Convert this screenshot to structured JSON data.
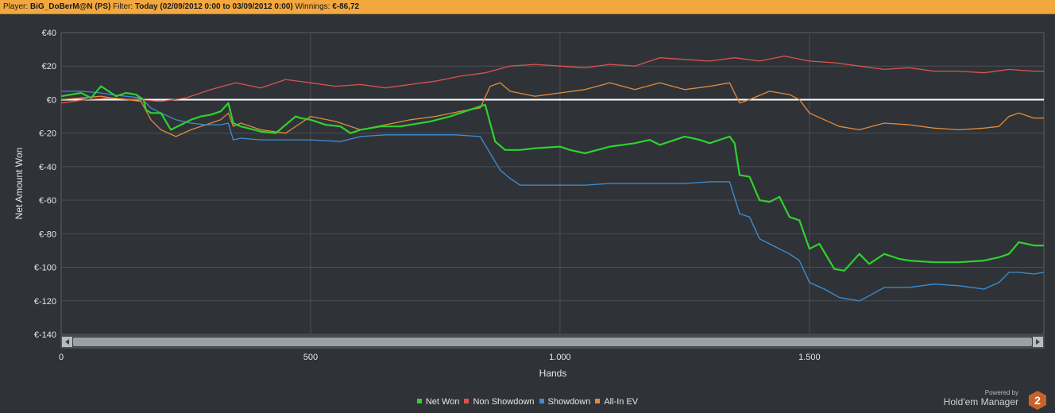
{
  "header": {
    "player_label": "Player:",
    "player_value": "BiG_DoBerM@N (PS)",
    "filter_label": "Filter:",
    "filter_value": "Today (02/09/2012 0:00 to 03/09/2012 0:00)",
    "winnings_label": "Winnings:",
    "winnings_value": "€-86,72"
  },
  "branding": {
    "powered_by": "Powered by",
    "product": "Hold'em Manager",
    "logo_text": "2"
  },
  "colors": {
    "background": "#2f3337",
    "grid": "#4a4f54",
    "header": "#f2a83f",
    "net_won": "#2fd12f",
    "non_showdown": "#d9534f",
    "showdown": "#3c8fd6",
    "all_in_ev": "#e08a3c",
    "zero_line": "#ffffff"
  },
  "chart_data": {
    "type": "line",
    "xlabel": "Hands",
    "ylabel": "Net Amount Won",
    "xlim": [
      0,
      1970
    ],
    "ylim": [
      -140,
      40
    ],
    "xticks": [
      0,
      500,
      1000,
      1500
    ],
    "xtick_labels": [
      "0",
      "500",
      "1.000",
      "1.500"
    ],
    "yticks": [
      40,
      20,
      0,
      -20,
      -40,
      -60,
      -80,
      -100,
      -120,
      -140
    ],
    "ytick_labels": [
      "€40",
      "€20",
      "€0",
      "€-20",
      "€-40",
      "€-60",
      "€-80",
      "€-100",
      "€-120",
      "€-140"
    ],
    "grid": true,
    "legend_position": "bottom-center",
    "series": [
      {
        "name": "Net Won",
        "color": "#2fd12f",
        "x": [
          0,
          20,
          40,
          60,
          80,
          95,
          110,
          130,
          150,
          165,
          170,
          180,
          200,
          220,
          240,
          260,
          280,
          300,
          320,
          335,
          345,
          360,
          400,
          430,
          450,
          470,
          480,
          500,
          530,
          560,
          580,
          600,
          640,
          680,
          700,
          740,
          780,
          820,
          840,
          850,
          860,
          870,
          890,
          920,
          950,
          1000,
          1020,
          1050,
          1100,
          1150,
          1180,
          1200,
          1250,
          1280,
          1300,
          1330,
          1340,
          1350,
          1360,
          1380,
          1400,
          1420,
          1440,
          1460,
          1480,
          1500,
          1520,
          1550,
          1570,
          1600,
          1620,
          1650,
          1680,
          1700,
          1750,
          1800,
          1850,
          1880,
          1900,
          1920,
          1950,
          1970
        ],
        "y": [
          2,
          3,
          4,
          1,
          8,
          5,
          2,
          4,
          3,
          0,
          -6,
          -8,
          -8,
          -18,
          -15,
          -12,
          -10,
          -9,
          -7,
          -2,
          -14,
          -16,
          -19,
          -20,
          -15,
          -10,
          -11,
          -12,
          -15,
          -16,
          -20,
          -18,
          -16,
          -16,
          -15,
          -13,
          -10,
          -6,
          -4,
          -3,
          -14,
          -25,
          -30,
          -30,
          -29,
          -28,
          -30,
          -32,
          -28,
          -26,
          -24,
          -27,
          -22,
          -24,
          -26,
          -23,
          -22,
          -26,
          -45,
          -46,
          -60,
          -61,
          -58,
          -70,
          -72,
          -89,
          -86,
          -101,
          -102,
          -92,
          -98,
          -92,
          -95,
          -96,
          -97,
          -97,
          -96,
          -94,
          -92,
          -85,
          -87,
          -87
        ]
      },
      {
        "name": "Non Showdown",
        "color": "#d9534f",
        "x": [
          0,
          50,
          100,
          150,
          200,
          250,
          300,
          350,
          400,
          450,
          500,
          550,
          600,
          650,
          700,
          750,
          800,
          850,
          900,
          950,
          1000,
          1050,
          1100,
          1150,
          1200,
          1250,
          1300,
          1350,
          1400,
          1450,
          1500,
          1550,
          1600,
          1650,
          1700,
          1750,
          1800,
          1850,
          1900,
          1950,
          1970
        ],
        "y": [
          -2,
          0,
          1,
          0,
          -1,
          1,
          6,
          10,
          7,
          12,
          10,
          8,
          9,
          7,
          9,
          11,
          14,
          16,
          20,
          21,
          20,
          19,
          21,
          20,
          25,
          24,
          23,
          25,
          23,
          26,
          23,
          22,
          20,
          18,
          19,
          17,
          17,
          16,
          18,
          17,
          17
        ]
      },
      {
        "name": "Showdown",
        "color": "#3c8fd6",
        "x": [
          0,
          40,
          80,
          100,
          130,
          160,
          180,
          200,
          230,
          260,
          290,
          320,
          335,
          345,
          360,
          400,
          500,
          560,
          600,
          650,
          700,
          750,
          790,
          840,
          860,
          880,
          900,
          920,
          950,
          1000,
          1050,
          1100,
          1150,
          1200,
          1250,
          1300,
          1340,
          1360,
          1380,
          1400,
          1420,
          1460,
          1480,
          1500,
          1530,
          1560,
          1600,
          1620,
          1650,
          1700,
          1750,
          1800,
          1850,
          1880,
          1900,
          1920,
          1950,
          1970
        ],
        "y": [
          5,
          5,
          4,
          3,
          2,
          1,
          -5,
          -8,
          -12,
          -14,
          -15,
          -15,
          -14,
          -24,
          -23,
          -24,
          -24,
          -25,
          -22,
          -21,
          -21,
          -21,
          -21,
          -22,
          -32,
          -42,
          -47,
          -51,
          -51,
          -51,
          -51,
          -50,
          -50,
          -50,
          -50,
          -49,
          -49,
          -68,
          -70,
          -83,
          -86,
          -92,
          -96,
          -109,
          -113,
          -118,
          -120,
          -117,
          -112,
          -112,
          -110,
          -111,
          -113,
          -109,
          -103,
          -103,
          -104,
          -103
        ]
      },
      {
        "name": "All-In EV",
        "color": "#e08a3c",
        "x": [
          0,
          40,
          80,
          100,
          130,
          160,
          180,
          200,
          230,
          260,
          290,
          320,
          335,
          345,
          360,
          400,
          450,
          500,
          550,
          600,
          650,
          700,
          750,
          800,
          840,
          860,
          880,
          900,
          950,
          1000,
          1050,
          1100,
          1150,
          1200,
          1250,
          1300,
          1340,
          1360,
          1380,
          1420,
          1460,
          1480,
          1500,
          1530,
          1560,
          1600,
          1650,
          1700,
          1750,
          1800,
          1850,
          1880,
          1900,
          1920,
          1950,
          1970
        ],
        "y": [
          0,
          1,
          2,
          1,
          0,
          -1,
          -12,
          -18,
          -22,
          -18,
          -15,
          -12,
          -8,
          -16,
          -14,
          -18,
          -20,
          -10,
          -13,
          -18,
          -15,
          -12,
          -10,
          -7,
          -5,
          8,
          10,
          5,
          2,
          4,
          6,
          10,
          6,
          10,
          6,
          8,
          10,
          -2,
          0,
          5,
          3,
          0,
          -8,
          -12,
          -16,
          -18,
          -14,
          -15,
          -17,
          -18,
          -17,
          -16,
          -10,
          -8,
          -11,
          -11
        ]
      }
    ]
  }
}
